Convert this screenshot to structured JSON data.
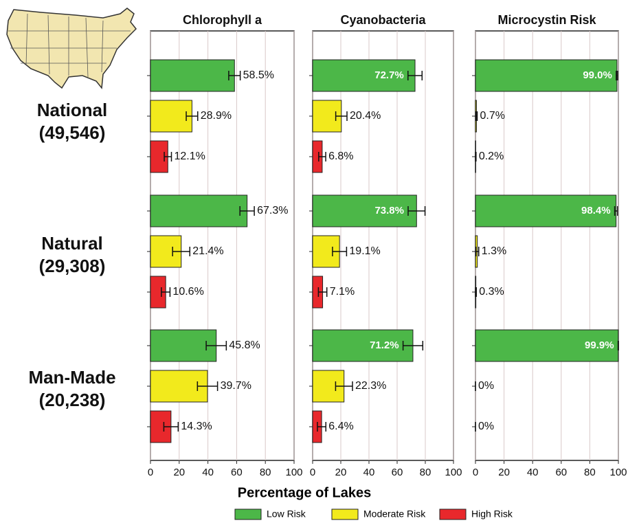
{
  "chart_data": {
    "type": "bar",
    "orientation": "horizontal",
    "xlabel": "Percentage of Lakes",
    "xlim": [
      0,
      100
    ],
    "xticks": [
      0,
      20,
      40,
      60,
      80,
      100
    ],
    "grid": true,
    "legend": "bottom",
    "categories": [
      {
        "name": "National",
        "count": "(49,546)"
      },
      {
        "name": "Natural",
        "count": "(29,308)"
      },
      {
        "name": "Man-Made",
        "count": "(20,238)"
      }
    ],
    "series": [
      {
        "name": "Low Risk",
        "color": "#4cb748"
      },
      {
        "name": "Moderate Risk",
        "color": "#f2ea1c"
      },
      {
        "name": "High Risk",
        "color": "#e8282c"
      }
    ],
    "panels": [
      {
        "title": "Chlorophyll a",
        "values": [
          [
            58.5,
            28.9,
            12.1
          ],
          [
            67.3,
            21.4,
            10.6
          ],
          [
            45.8,
            39.7,
            14.3
          ]
        ],
        "value_labels": [
          [
            "58.5%",
            "28.9%",
            "12.1%"
          ],
          [
            "67.3%",
            "21.4%",
            "10.6%"
          ],
          [
            "45.8%",
            "39.7%",
            "14.3%"
          ]
        ],
        "errors": [
          [
            4,
            4,
            2.5
          ],
          [
            5,
            6,
            3
          ],
          [
            7,
            7,
            5
          ]
        ]
      },
      {
        "title": "Cyanobacteria",
        "values": [
          [
            72.7,
            20.4,
            6.8
          ],
          [
            73.8,
            19.1,
            7.1
          ],
          [
            71.2,
            22.3,
            6.4
          ]
        ],
        "value_labels": [
          [
            "72.7%",
            "20.4%",
            "6.8%"
          ],
          [
            "73.8%",
            "19.1%",
            "7.1%"
          ],
          [
            "71.2%",
            "22.3%",
            "6.4%"
          ]
        ],
        "errors": [
          [
            5,
            4,
            2.5
          ],
          [
            6,
            5,
            3
          ],
          [
            7,
            6,
            3
          ]
        ]
      },
      {
        "title": "Microcystin Risk",
        "values": [
          [
            99.0,
            0.7,
            0.2
          ],
          [
            98.4,
            1.3,
            0.3
          ],
          [
            99.9,
            0,
            0
          ]
        ],
        "value_labels": [
          [
            "99.0%",
            "0.7%",
            "0.2%"
          ],
          [
            "98.4%",
            "1.3%",
            "0.3%"
          ],
          [
            "99.9%",
            "0%",
            "0%"
          ]
        ],
        "errors": [
          [
            0.5,
            0.5,
            0.2
          ],
          [
            1,
            1,
            0.3
          ],
          [
            0.1,
            0,
            0
          ]
        ]
      }
    ]
  }
}
